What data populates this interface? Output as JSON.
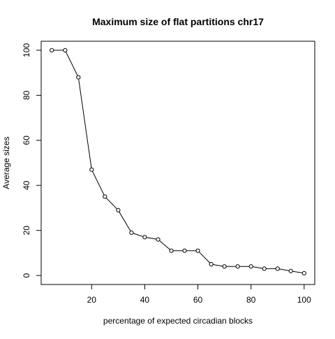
{
  "chart_data": {
    "type": "line",
    "title": "Maximum size of flat partitions chr17",
    "xlabel": "percentage of expected circadian blocks",
    "ylabel": "Average sizes",
    "xlim": [
      1,
      104
    ],
    "ylim": [
      -4,
      104
    ],
    "x_ticks": [
      20,
      40,
      60,
      80,
      100
    ],
    "y_ticks": [
      0,
      20,
      40,
      60,
      80,
      100
    ],
    "grid": false,
    "legend": "none",
    "line_color": "#000000",
    "marker": "open-circle",
    "series": [
      {
        "x": [
          5,
          10,
          15,
          20,
          25,
          30,
          35,
          40,
          45,
          50,
          55,
          60,
          65,
          70,
          75,
          80,
          85,
          90,
          95,
          100
        ],
        "values": [
          100,
          100,
          88,
          47,
          35,
          29,
          19,
          17,
          16,
          11,
          11,
          11,
          5,
          4,
          4,
          4,
          3,
          3,
          2,
          1
        ]
      }
    ]
  }
}
